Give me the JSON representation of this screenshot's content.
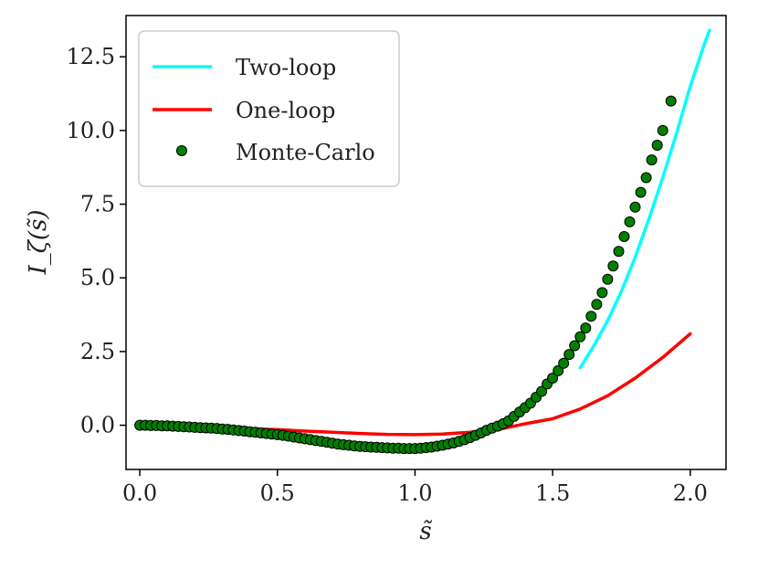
{
  "chart_data": {
    "type": "line",
    "xlabel": "s̃",
    "ylabel": "I_ζ(s̃)",
    "xlim": [
      -0.05,
      2.13
    ],
    "ylim": [
      -1.5,
      13.9
    ],
    "xticks": [
      "0.0",
      "0.5",
      "1.0",
      "1.5",
      "2.0"
    ],
    "xtick_values": [
      0.0,
      0.5,
      1.0,
      1.5,
      2.0
    ],
    "yticks": [
      "0.0",
      "2.5",
      "5.0",
      "7.5",
      "10.0",
      "12.5"
    ],
    "ytick_values": [
      0.0,
      2.5,
      5.0,
      7.5,
      10.0,
      12.5
    ],
    "legend_position": "top-left",
    "series": [
      {
        "name": "Two-loop",
        "kind": "line",
        "color": "#00ffff",
        "x": [
          1.6,
          1.65,
          1.7,
          1.75,
          1.8,
          1.85,
          1.9,
          1.95,
          2.0,
          2.05,
          2.07
        ],
        "y": [
          1.95,
          2.7,
          3.55,
          4.55,
          5.7,
          7.0,
          8.4,
          9.9,
          11.5,
          12.9,
          13.4
        ]
      },
      {
        "name": "One-loop",
        "kind": "line",
        "color": "#ff0000",
        "x": [
          0.4,
          0.5,
          0.6,
          0.7,
          0.8,
          0.9,
          1.0,
          1.1,
          1.2,
          1.3,
          1.35,
          1.4,
          1.5,
          1.6,
          1.7,
          1.8,
          1.9,
          2.0
        ],
        "y": [
          -0.12,
          -0.15,
          -0.2,
          -0.24,
          -0.28,
          -0.31,
          -0.32,
          -0.3,
          -0.24,
          -0.15,
          -0.05,
          0.05,
          0.22,
          0.55,
          1.0,
          1.6,
          2.3,
          3.1
        ]
      },
      {
        "name": "Monte-Carlo",
        "kind": "scatter",
        "color": "#007f00",
        "x": [
          0.0,
          0.02,
          0.04,
          0.06,
          0.08,
          0.1,
          0.12,
          0.14,
          0.16,
          0.18,
          0.2,
          0.22,
          0.24,
          0.26,
          0.28,
          0.3,
          0.32,
          0.34,
          0.36,
          0.38,
          0.4,
          0.42,
          0.44,
          0.46,
          0.48,
          0.5,
          0.52,
          0.54,
          0.56,
          0.58,
          0.6,
          0.62,
          0.64,
          0.66,
          0.68,
          0.7,
          0.72,
          0.74,
          0.76,
          0.78,
          0.8,
          0.82,
          0.84,
          0.86,
          0.88,
          0.9,
          0.92,
          0.94,
          0.96,
          0.98,
          1.0,
          1.02,
          1.04,
          1.06,
          1.08,
          1.1,
          1.12,
          1.14,
          1.16,
          1.18,
          1.2,
          1.22,
          1.24,
          1.26,
          1.28,
          1.3,
          1.32,
          1.34,
          1.36,
          1.38,
          1.4,
          1.42,
          1.44,
          1.46,
          1.48,
          1.5,
          1.52,
          1.54,
          1.56,
          1.58,
          1.6,
          1.62,
          1.64,
          1.66,
          1.68,
          1.7,
          1.72,
          1.74,
          1.76,
          1.78,
          1.8,
          1.82,
          1.84,
          1.86,
          1.88,
          1.9,
          1.93
        ],
        "y": [
          0.0,
          0.0,
          -0.01,
          -0.01,
          -0.02,
          -0.02,
          -0.03,
          -0.04,
          -0.05,
          -0.06,
          -0.07,
          -0.08,
          -0.09,
          -0.1,
          -0.11,
          -0.13,
          -0.14,
          -0.16,
          -0.18,
          -0.2,
          -0.22,
          -0.24,
          -0.26,
          -0.28,
          -0.3,
          -0.32,
          -0.34,
          -0.37,
          -0.4,
          -0.43,
          -0.46,
          -0.49,
          -0.52,
          -0.55,
          -0.58,
          -0.61,
          -0.64,
          -0.66,
          -0.68,
          -0.7,
          -0.72,
          -0.73,
          -0.74,
          -0.75,
          -0.76,
          -0.77,
          -0.78,
          -0.78,
          -0.79,
          -0.79,
          -0.79,
          -0.78,
          -0.76,
          -0.74,
          -0.71,
          -0.68,
          -0.64,
          -0.6,
          -0.55,
          -0.49,
          -0.42,
          -0.34,
          -0.26,
          -0.17,
          -0.1,
          -0.03,
          0.05,
          0.15,
          0.3,
          0.45,
          0.6,
          0.75,
          0.95,
          1.15,
          1.4,
          1.6,
          1.85,
          2.1,
          2.4,
          2.7,
          3.0,
          3.3,
          3.7,
          4.1,
          4.5,
          4.95,
          5.4,
          5.9,
          6.4,
          6.9,
          7.4,
          7.9,
          8.4,
          9.0,
          9.5,
          10.0,
          11.0
        ]
      }
    ]
  }
}
